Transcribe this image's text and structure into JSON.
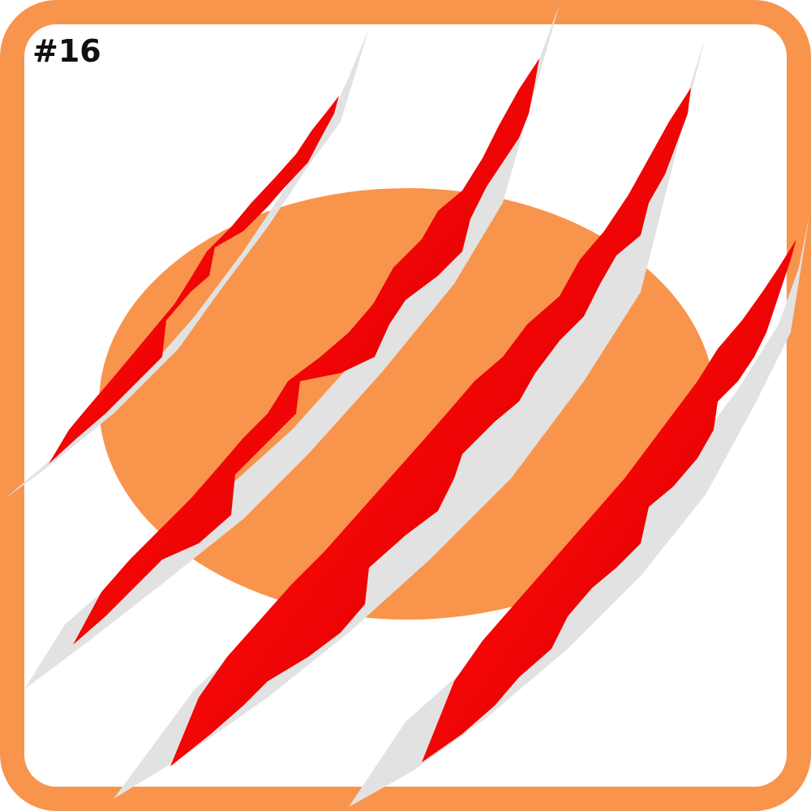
{
  "card": {
    "number_label": "#16",
    "colors": {
      "frame": "#F9944D",
      "circle": "#F9944D",
      "background": "#FFFFFF",
      "tear_inner": "#F20000",
      "tear_edge": "#B30008",
      "paper_curl": "#E2E2E2"
    },
    "icons": [
      "claw-scratch-icon"
    ]
  }
}
